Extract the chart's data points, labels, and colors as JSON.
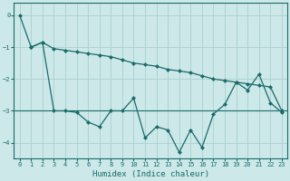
{
  "xlabel": "Humidex (Indice chaleur)",
  "ylabel": "",
  "bg_color": "#cce8e8",
  "grid_color": "#aad0d0",
  "line_color": "#1a6b6b",
  "x_line1": [
    0,
    1,
    2,
    3,
    4,
    5,
    6,
    7,
    8,
    9,
    10,
    11,
    12,
    13,
    14,
    15,
    16,
    17,
    18,
    19,
    20,
    21,
    22,
    23
  ],
  "y_line1": [
    0.0,
    -1.0,
    -0.85,
    -1.05,
    -1.1,
    -1.15,
    -1.2,
    -1.25,
    -1.3,
    -1.4,
    -1.5,
    -1.55,
    -1.6,
    -1.7,
    -1.75,
    -1.8,
    -1.9,
    -2.0,
    -2.05,
    -2.1,
    -2.15,
    -2.2,
    -2.25,
    -3.0
  ],
  "x_line2": [
    1,
    2,
    3,
    4,
    5,
    6,
    7,
    8,
    9,
    10,
    11,
    12,
    13,
    14,
    15,
    16,
    17,
    18,
    19,
    20,
    21,
    22,
    23
  ],
  "y_line2": [
    -1.0,
    -0.85,
    -3.0,
    -3.0,
    -3.05,
    -3.35,
    -3.5,
    -3.0,
    -3.0,
    -2.6,
    -3.85,
    -3.5,
    -3.6,
    -4.3,
    -3.6,
    -4.15,
    -3.1,
    -2.8,
    -2.1,
    -2.35,
    -1.85,
    -2.75,
    -3.05
  ],
  "y_hline": -3.0,
  "ylim": [
    -4.5,
    0.4
  ],
  "xlim": [
    -0.5,
    23.5
  ],
  "yticks": [
    0,
    -1,
    -2,
    -3,
    -4
  ],
  "xticks": [
    0,
    1,
    2,
    3,
    4,
    5,
    6,
    7,
    8,
    9,
    10,
    11,
    12,
    13,
    14,
    15,
    16,
    17,
    18,
    19,
    20,
    21,
    22,
    23
  ],
  "tick_fontsize": 5,
  "xlabel_fontsize": 6.5,
  "marker_size": 2.5,
  "line_width": 0.9
}
